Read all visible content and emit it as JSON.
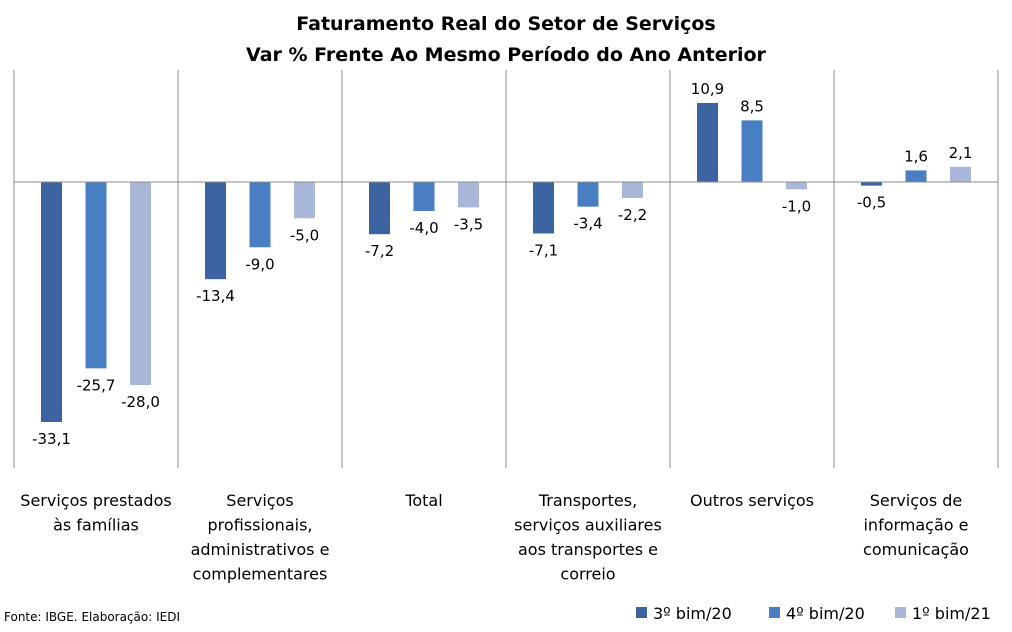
{
  "chart_data": {
    "type": "bar",
    "title": "Faturamento Real do Setor de Serviços",
    "subtitle": "Var % Frente Ao Mesmo Período do Ano Anterior",
    "xlabel": "",
    "ylabel": "",
    "ylim": [
      -35,
      14
    ],
    "grid": false,
    "legend_position": "bottom-right",
    "categories": [
      [
        "Serviços prestados",
        "às famílias"
      ],
      [
        "Serviços",
        "profissionais,",
        "administrativos e",
        "complementares"
      ],
      [
        "Total"
      ],
      [
        "Transportes,",
        "serviços auxiliares",
        "aos transportes e",
        "correio"
      ],
      [
        "Outros serviços"
      ],
      [
        "Serviços de",
        "informação e",
        "comunicação"
      ]
    ],
    "series": [
      {
        "name": "3º bim/20",
        "color": "#3B64A0",
        "values": [
          -33.1,
          -13.4,
          -7.2,
          -7.1,
          10.9,
          -0.5
        ],
        "labels": [
          "-33,1",
          "-13,4",
          "-7,2",
          "-7,1",
          "10,9",
          "-0,5"
        ]
      },
      {
        "name": "4º bim/20",
        "color": "#4A7EC2",
        "values": [
          -25.7,
          -9.0,
          -4.0,
          -3.4,
          8.5,
          1.6
        ],
        "labels": [
          "-25,7",
          "-9,0",
          "-4,0",
          "-3,4",
          "8,5",
          "1,6"
        ]
      },
      {
        "name": "1º bim/21",
        "color": "#A9B8D9",
        "values": [
          -28.0,
          -5.0,
          -3.5,
          -2.2,
          -1.0,
          2.1
        ],
        "labels": [
          "-28,0",
          "-5,0",
          "-3,5",
          "-2,2",
          "-1,0",
          "2,1"
        ]
      }
    ]
  },
  "source_note": "Fonte: IBGE. Elaboração: IEDI"
}
